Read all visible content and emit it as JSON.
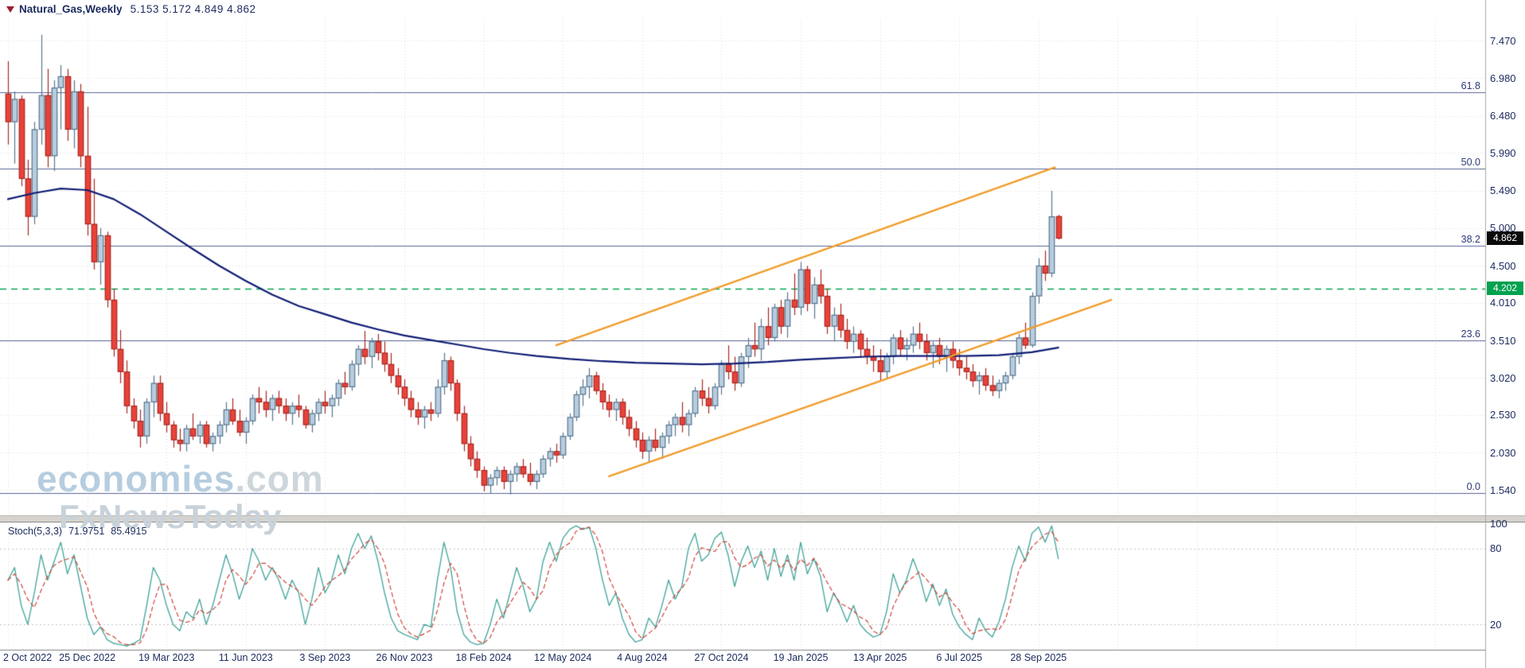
{
  "header": {
    "title": "Natural_Gas,Weekly",
    "ohlc_text": "5.153 5.172 4.849 4.862",
    "icon": "triangle-down-icon"
  },
  "watermark": {
    "line1_main": "economies",
    "line1_suffix": ".com",
    "line2": "FxNewsToday"
  },
  "badges": {
    "current_price": "4.862",
    "level_price": "4.202"
  },
  "indicator": {
    "name": "Stoch(5,3,3)",
    "k_value": "71.9751",
    "d_value": "85.4915"
  },
  "chart_data": {
    "type": "candlestick",
    "title": "Natural_Gas Weekly price chart with Stochastic oscillator",
    "symbol": "Natural_Gas",
    "timeframe": "Weekly",
    "current_price": 4.862,
    "y_axis": {
      "ticks": [
        "7.470",
        "6.980",
        "6.480",
        "5.990",
        "5.490",
        "5.000",
        "4.500",
        "4.010",
        "3.510",
        "3.020",
        "2.530",
        "2.030",
        "1.540"
      ],
      "range": [
        1.21,
        7.76
      ]
    },
    "x_axis": {
      "labels": [
        {
          "i": 0,
          "t": "2 Oct 2022"
        },
        {
          "i": 12,
          "t": "25 Dec 2022"
        },
        {
          "i": 24,
          "t": "19 Mar 2023"
        },
        {
          "i": 36,
          "t": "11 Jun 2023"
        },
        {
          "i": 48,
          "t": "3 Sep 2023"
        },
        {
          "i": 60,
          "t": "26 Nov 2023"
        },
        {
          "i": 72,
          "t": "18 Feb 2024"
        },
        {
          "i": 84,
          "t": "12 May 2024"
        },
        {
          "i": 96,
          "t": "4 Aug 2024"
        },
        {
          "i": 108,
          "t": "27 Oct 2024"
        },
        {
          "i": 120,
          "t": "19 Jan 2025"
        },
        {
          "i": 132,
          "t": "13 Apr 2025"
        },
        {
          "i": 144,
          "t": "6 Jul 2025"
        },
        {
          "i": 156,
          "t": "28 Sep 2025"
        }
      ]
    },
    "candles": [
      [
        6.77,
        7.2,
        6.1,
        6.4
      ],
      [
        6.4,
        6.8,
        5.85,
        6.7
      ],
      [
        6.7,
        6.75,
        5.55,
        5.65
      ],
      [
        5.65,
        5.9,
        4.9,
        5.15
      ],
      [
        5.15,
        6.4,
        5.05,
        6.3
      ],
      [
        6.3,
        7.55,
        6.1,
        6.75
      ],
      [
        6.75,
        7.1,
        5.8,
        5.95
      ],
      [
        5.95,
        6.95,
        5.75,
        6.85
      ],
      [
        6.85,
        7.15,
        6.3,
        7.0
      ],
      [
        7.0,
        7.1,
        6.15,
        6.3
      ],
      [
        6.3,
        6.95,
        6.05,
        6.8
      ],
      [
        6.8,
        6.9,
        5.8,
        5.95
      ],
      [
        5.95,
        6.6,
        4.9,
        5.05
      ],
      [
        5.05,
        5.65,
        4.45,
        4.55
      ],
      [
        4.55,
        5.0,
        4.25,
        4.9
      ],
      [
        4.9,
        4.95,
        3.95,
        4.05
      ],
      [
        4.05,
        4.2,
        3.3,
        3.4
      ],
      [
        3.4,
        3.65,
        2.95,
        3.1
      ],
      [
        3.1,
        3.25,
        2.55,
        2.65
      ],
      [
        2.65,
        2.75,
        2.35,
        2.45
      ],
      [
        2.45,
        2.6,
        2.1,
        2.25
      ],
      [
        2.25,
        2.75,
        2.15,
        2.7
      ],
      [
        2.7,
        3.05,
        2.5,
        2.95
      ],
      [
        2.95,
        3.05,
        2.45,
        2.55
      ],
      [
        2.55,
        2.7,
        2.3,
        2.4
      ],
      [
        2.4,
        2.45,
        2.1,
        2.2
      ],
      [
        2.2,
        2.35,
        2.05,
        2.15
      ],
      [
        2.15,
        2.4,
        2.05,
        2.35
      ],
      [
        2.35,
        2.55,
        2.2,
        2.25
      ],
      [
        2.25,
        2.45,
        2.15,
        2.4
      ],
      [
        2.4,
        2.45,
        2.1,
        2.15
      ],
      [
        2.15,
        2.3,
        2.05,
        2.25
      ],
      [
        2.25,
        2.45,
        2.15,
        2.4
      ],
      [
        2.4,
        2.7,
        2.3,
        2.6
      ],
      [
        2.6,
        2.75,
        2.4,
        2.45
      ],
      [
        2.45,
        2.6,
        2.25,
        2.3
      ],
      [
        2.3,
        2.5,
        2.15,
        2.45
      ],
      [
        2.45,
        2.8,
        2.4,
        2.75
      ],
      [
        2.75,
        2.9,
        2.55,
        2.7
      ],
      [
        2.7,
        2.85,
        2.5,
        2.6
      ],
      [
        2.6,
        2.8,
        2.45,
        2.75
      ],
      [
        2.75,
        2.85,
        2.55,
        2.65
      ],
      [
        2.65,
        2.75,
        2.45,
        2.55
      ],
      [
        2.55,
        2.7,
        2.4,
        2.65
      ],
      [
        2.65,
        2.8,
        2.5,
        2.6
      ],
      [
        2.6,
        2.65,
        2.35,
        2.4
      ],
      [
        2.4,
        2.6,
        2.3,
        2.55
      ],
      [
        2.55,
        2.75,
        2.45,
        2.7
      ],
      [
        2.7,
        2.85,
        2.55,
        2.65
      ],
      [
        2.65,
        2.8,
        2.5,
        2.75
      ],
      [
        2.75,
        3.0,
        2.65,
        2.95
      ],
      [
        2.95,
        3.1,
        2.8,
        2.9
      ],
      [
        2.9,
        3.25,
        2.85,
        3.2
      ],
      [
        3.2,
        3.45,
        3.05,
        3.4
      ],
      [
        3.4,
        3.64,
        3.2,
        3.3
      ],
      [
        3.3,
        3.55,
        3.15,
        3.5
      ],
      [
        3.5,
        3.6,
        3.25,
        3.35
      ],
      [
        3.35,
        3.5,
        3.1,
        3.2
      ],
      [
        3.2,
        3.35,
        2.95,
        3.05
      ],
      [
        3.05,
        3.15,
        2.8,
        2.9
      ],
      [
        2.9,
        3.0,
        2.65,
        2.75
      ],
      [
        2.75,
        2.85,
        2.5,
        2.6
      ],
      [
        2.6,
        2.7,
        2.4,
        2.5
      ],
      [
        2.5,
        2.65,
        2.35,
        2.6
      ],
      [
        2.6,
        2.7,
        2.45,
        2.55
      ],
      [
        2.55,
        3.0,
        2.5,
        2.9
      ],
      [
        2.9,
        3.35,
        2.8,
        3.25
      ],
      [
        3.25,
        3.3,
        2.85,
        2.95
      ],
      [
        2.95,
        3.0,
        2.45,
        2.55
      ],
      [
        2.55,
        2.65,
        2.05,
        2.15
      ],
      [
        2.15,
        2.25,
        1.85,
        1.95
      ],
      [
        1.95,
        2.05,
        1.7,
        1.8
      ],
      [
        1.8,
        1.85,
        1.52,
        1.6
      ],
      [
        1.6,
        1.75,
        1.5,
        1.7
      ],
      [
        1.7,
        1.85,
        1.6,
        1.8
      ],
      [
        1.8,
        1.85,
        1.55,
        1.65
      ],
      [
        1.65,
        1.8,
        1.48,
        1.75
      ],
      [
        1.75,
        1.9,
        1.65,
        1.85
      ],
      [
        1.85,
        1.95,
        1.7,
        1.75
      ],
      [
        1.75,
        1.9,
        1.6,
        1.65
      ],
      [
        1.65,
        1.8,
        1.55,
        1.75
      ],
      [
        1.75,
        2.0,
        1.7,
        1.95
      ],
      [
        1.95,
        2.1,
        1.85,
        2.05
      ],
      [
        2.05,
        2.15,
        1.9,
        2.0
      ],
      [
        2.0,
        2.3,
        1.95,
        2.25
      ],
      [
        2.25,
        2.55,
        2.2,
        2.5
      ],
      [
        2.5,
        2.85,
        2.45,
        2.8
      ],
      [
        2.8,
        3.0,
        2.65,
        2.9
      ],
      [
        2.9,
        3.15,
        2.75,
        3.05
      ],
      [
        3.05,
        3.1,
        2.8,
        2.85
      ],
      [
        2.85,
        2.95,
        2.6,
        2.7
      ],
      [
        2.7,
        2.8,
        2.5,
        2.6
      ],
      [
        2.6,
        2.75,
        2.45,
        2.7
      ],
      [
        2.7,
        2.75,
        2.4,
        2.5
      ],
      [
        2.5,
        2.6,
        2.25,
        2.35
      ],
      [
        2.35,
        2.45,
        2.1,
        2.2
      ],
      [
        2.2,
        2.3,
        1.95,
        2.05
      ],
      [
        2.05,
        2.25,
        1.9,
        2.2
      ],
      [
        2.2,
        2.35,
        2.05,
        2.1
      ],
      [
        2.1,
        2.3,
        1.95,
        2.25
      ],
      [
        2.25,
        2.45,
        2.15,
        2.4
      ],
      [
        2.4,
        2.55,
        2.25,
        2.5
      ],
      [
        2.5,
        2.7,
        2.3,
        2.4
      ],
      [
        2.4,
        2.6,
        2.25,
        2.55
      ],
      [
        2.55,
        2.9,
        2.5,
        2.85
      ],
      [
        2.85,
        3.0,
        2.65,
        2.75
      ],
      [
        2.75,
        2.9,
        2.55,
        2.65
      ],
      [
        2.65,
        2.95,
        2.6,
        2.9
      ],
      [
        2.9,
        3.25,
        2.8,
        3.2
      ],
      [
        3.2,
        3.45,
        3.0,
        3.1
      ],
      [
        3.1,
        3.3,
        2.85,
        2.95
      ],
      [
        2.95,
        3.35,
        2.9,
        3.3
      ],
      [
        3.3,
        3.55,
        3.15,
        3.45
      ],
      [
        3.45,
        3.75,
        3.3,
        3.4
      ],
      [
        3.4,
        3.8,
        3.25,
        3.7
      ],
      [
        3.7,
        3.95,
        3.45,
        3.55
      ],
      [
        3.55,
        4.0,
        3.5,
        3.95
      ],
      [
        3.95,
        4.05,
        3.6,
        3.7
      ],
      [
        3.7,
        4.15,
        3.55,
        4.05
      ],
      [
        4.05,
        4.4,
        3.85,
        3.95
      ],
      [
        3.95,
        4.55,
        3.85,
        4.45
      ],
      [
        4.45,
        4.5,
        3.9,
        4.0
      ],
      [
        4.0,
        4.35,
        3.8,
        4.25
      ],
      [
        4.25,
        4.45,
        4.0,
        4.1
      ],
      [
        4.1,
        4.2,
        3.6,
        3.7
      ],
      [
        3.7,
        3.95,
        3.5,
        3.85
      ],
      [
        3.85,
        4.0,
        3.55,
        3.65
      ],
      [
        3.65,
        3.8,
        3.4,
        3.5
      ],
      [
        3.5,
        3.7,
        3.35,
        3.6
      ],
      [
        3.6,
        3.65,
        3.3,
        3.4
      ],
      [
        3.4,
        3.55,
        3.2,
        3.3
      ],
      [
        3.3,
        3.45,
        3.1,
        3.25
      ],
      [
        3.25,
        3.4,
        2.98,
        3.1
      ],
      [
        3.1,
        3.35,
        3.0,
        3.3
      ],
      [
        3.3,
        3.6,
        3.2,
        3.55
      ],
      [
        3.55,
        3.65,
        3.3,
        3.4
      ],
      [
        3.4,
        3.55,
        3.25,
        3.45
      ],
      [
        3.45,
        3.7,
        3.35,
        3.6
      ],
      [
        3.6,
        3.75,
        3.4,
        3.5
      ],
      [
        3.5,
        3.6,
        3.25,
        3.35
      ],
      [
        3.35,
        3.5,
        3.15,
        3.45
      ],
      [
        3.45,
        3.55,
        3.2,
        3.3
      ],
      [
        3.3,
        3.45,
        3.1,
        3.4
      ],
      [
        3.4,
        3.5,
        3.15,
        3.25
      ],
      [
        3.25,
        3.4,
        3.05,
        3.15
      ],
      [
        3.15,
        3.3,
        3.0,
        3.1
      ],
      [
        3.1,
        3.2,
        2.9,
        2.98
      ],
      [
        2.98,
        3.1,
        2.8,
        3.05
      ],
      [
        3.05,
        3.15,
        2.85,
        2.92
      ],
      [
        2.92,
        3.05,
        2.78,
        2.85
      ],
      [
        2.85,
        3.0,
        2.75,
        2.95
      ],
      [
        2.95,
        3.1,
        2.85,
        3.05
      ],
      [
        3.05,
        3.35,
        3.0,
        3.3
      ],
      [
        3.3,
        3.6,
        3.2,
        3.55
      ],
      [
        3.55,
        3.75,
        3.4,
        3.45
      ],
      [
        3.45,
        4.15,
        3.42,
        4.1
      ],
      [
        4.1,
        4.6,
        4.0,
        4.5
      ],
      [
        4.5,
        4.7,
        4.3,
        4.4
      ],
      [
        4.4,
        5.49,
        4.35,
        5.15
      ],
      [
        5.153,
        5.172,
        4.849,
        4.862
      ]
    ],
    "moving_average": {
      "points": [
        [
          0,
          5.38
        ],
        [
          4,
          5.46
        ],
        [
          8,
          5.52
        ],
        [
          12,
          5.5
        ],
        [
          16,
          5.38
        ],
        [
          20,
          5.18
        ],
        [
          24,
          4.95
        ],
        [
          28,
          4.72
        ],
        [
          32,
          4.5
        ],
        [
          36,
          4.3
        ],
        [
          40,
          4.12
        ],
        [
          44,
          3.97
        ],
        [
          48,
          3.86
        ],
        [
          52,
          3.75
        ],
        [
          56,
          3.66
        ],
        [
          60,
          3.58
        ],
        [
          64,
          3.52
        ],
        [
          68,
          3.46
        ],
        [
          72,
          3.4
        ],
        [
          76,
          3.35
        ],
        [
          80,
          3.31
        ],
        [
          85,
          3.27
        ],
        [
          90,
          3.24
        ],
        [
          95,
          3.22
        ],
        [
          100,
          3.21
        ],
        [
          105,
          3.2
        ],
        [
          110,
          3.21
        ],
        [
          115,
          3.23
        ],
        [
          120,
          3.26
        ],
        [
          125,
          3.28
        ],
        [
          130,
          3.3
        ],
        [
          135,
          3.31
        ],
        [
          140,
          3.31
        ],
        [
          145,
          3.31
        ],
        [
          150,
          3.32
        ],
        [
          155,
          3.36
        ],
        [
          159,
          3.42
        ]
      ]
    },
    "trendlines": [
      {
        "name": "ascending-channel-upper",
        "from": {
          "index": 83,
          "price": 3.45
        },
        "to": {
          "index": 158.5,
          "price": 5.8
        }
      },
      {
        "name": "ascending-channel-lower",
        "from": {
          "index": 91,
          "price": 1.72
        },
        "to": {
          "index": 167,
          "price": 4.05
        }
      }
    ],
    "fib_levels": [
      {
        "label": "61.8",
        "price": 6.79
      },
      {
        "label": "50.0",
        "price": 5.78
      },
      {
        "label": "38.2",
        "price": 4.77
      },
      {
        "label": "23.6",
        "price": 3.52
      },
      {
        "label": "0.0",
        "price": 1.5
      }
    ],
    "level_lines": [
      {
        "price": 4.202,
        "style": "dashed",
        "color": "#00a551"
      }
    ],
    "stochastic": {
      "label": "Stoch(5,3,3)",
      "k": [
        55,
        65,
        35,
        20,
        45,
        75,
        55,
        70,
        85,
        60,
        75,
        50,
        25,
        12,
        18,
        8,
        5,
        4,
        3,
        5,
        8,
        35,
        65,
        55,
        35,
        20,
        15,
        30,
        25,
        40,
        20,
        35,
        55,
        75,
        60,
        40,
        55,
        80,
        70,
        55,
        65,
        55,
        40,
        55,
        45,
        20,
        40,
        65,
        45,
        55,
        75,
        60,
        80,
        92,
        80,
        90,
        70,
        45,
        25,
        15,
        12,
        10,
        8,
        20,
        18,
        55,
        85,
        65,
        30,
        12,
        6,
        4,
        5,
        20,
        40,
        25,
        45,
        65,
        50,
        30,
        40,
        70,
        85,
        70,
        88,
        95,
        98,
        95,
        97,
        80,
        55,
        35,
        45,
        25,
        12,
        6,
        8,
        25,
        18,
        35,
        55,
        40,
        50,
        80,
        92,
        70,
        75,
        88,
        93,
        75,
        50,
        70,
        82,
        65,
        78,
        55,
        80,
        58,
        75,
        55,
        85,
        60,
        72,
        58,
        30,
        45,
        35,
        22,
        35,
        20,
        14,
        10,
        12,
        30,
        60,
        45,
        55,
        72,
        58,
        38,
        52,
        35,
        48,
        28,
        18,
        12,
        8,
        25,
        15,
        10,
        22,
        40,
        65,
        82,
        70,
        92,
        97,
        85,
        98,
        72
      ],
      "d_period": 3,
      "levels": [
        80,
        20
      ],
      "range": [
        0,
        100
      ],
      "scale_ticks": [
        {
          "v": 100,
          "t": "100"
        },
        {
          "v": 80,
          "t": "80"
        },
        {
          "v": 20,
          "t": "20"
        }
      ]
    },
    "colors": {
      "up_fill": "#b7cdde",
      "up_stroke": "#56748f",
      "down_fill": "#e8423a",
      "down_stroke": "#a8261f",
      "moving_average": "#101d75",
      "trendline": "#f19c2b",
      "fib_line": "#5a6694",
      "level_line": "#00a551",
      "stoch_k": "#4aa9a0",
      "stoch_d": "#cc4437",
      "grid": "#dedede",
      "axis_text": "#1b2a5e"
    }
  }
}
